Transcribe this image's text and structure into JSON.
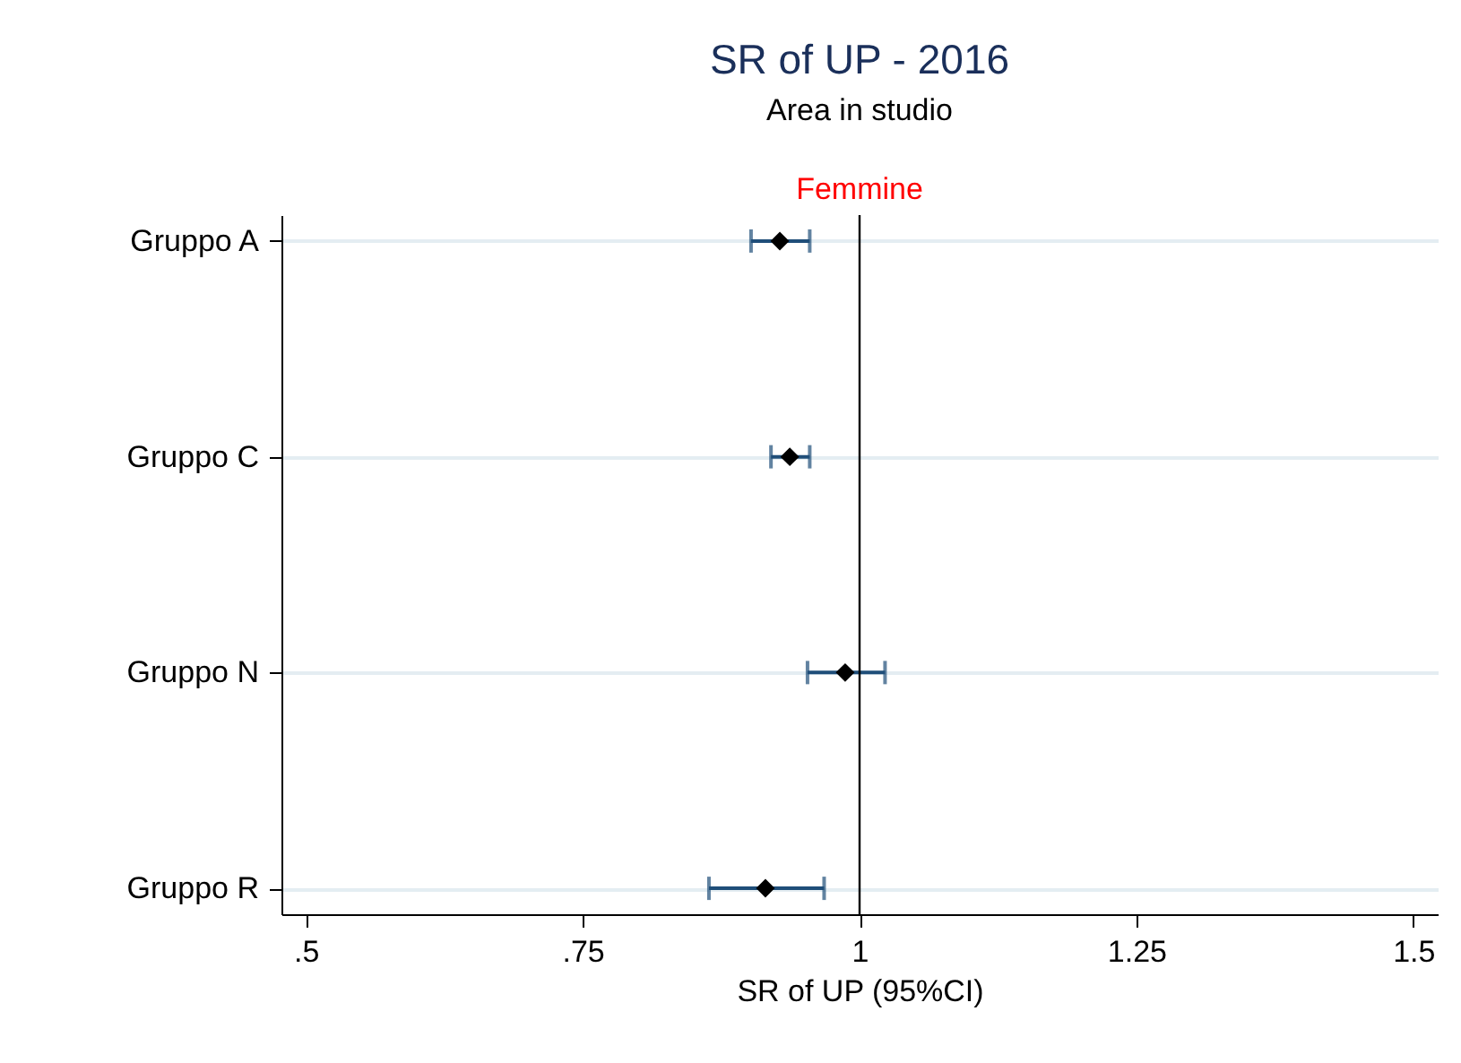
{
  "chart_data": {
    "type": "scatter",
    "title": "SR of UP - 2016",
    "subtitle": "Area in studio",
    "annotations": [
      "Femmine"
    ],
    "xlabel": "SR of UP (95%CI)",
    "categories": [
      "Gruppo A",
      "Gruppo C",
      "Gruppo N",
      "Gruppo R"
    ],
    "orientation": "horizontal",
    "series": [
      {
        "color": "#000000",
        "values": [
          0.928,
          0.937,
          0.987,
          0.915
        ],
        "errors": [
          [
            0.902,
            0.955
          ],
          [
            0.92,
            0.955
          ],
          [
            0.953,
            1.023
          ],
          [
            0.864,
            0.968
          ]
        ]
      }
    ],
    "marker": "diamond",
    "xlim": [
      0.478,
      1.522
    ],
    "xticks": [
      {
        "value": 0.5,
        "label": ".5"
      },
      {
        "value": 0.75,
        "label": ".75"
      },
      1,
      1.25,
      1.5
    ],
    "ref_lines": [
      {
        "axis": "x",
        "value": 1,
        "color": "#000000"
      }
    ],
    "grid": "y"
  }
}
